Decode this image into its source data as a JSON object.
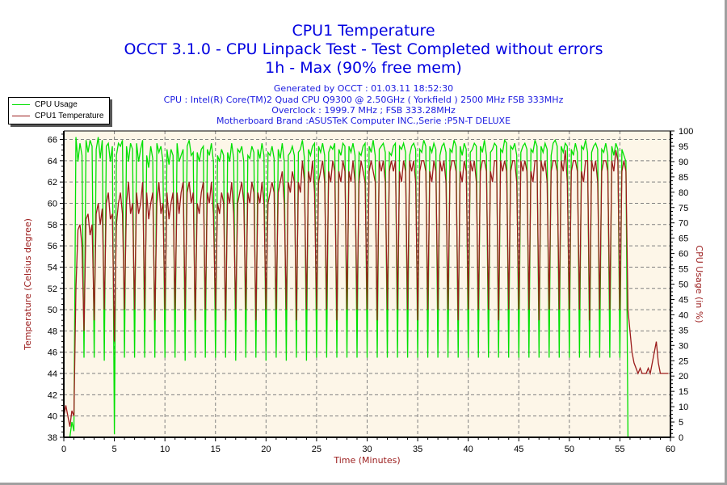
{
  "header": {
    "title_line1": "CPU1 Temperature",
    "title_line2": "OCCT 3.1.0 - CPU Linpack Test - Test Completed without errors",
    "title_line3": "1h - Max (90% free mem)",
    "generated": "Generated by OCCT : 01.03.11 18:52:30",
    "cpu": "CPU : Intel(R) Core(TM)2 Quad CPU Q9300 @ 2.50GHz ( Yorkfield ) 2500 MHz FSB 333MHz",
    "overclock": "Overclock : 1999.7 MHz ; FSB 333.28MHz",
    "motherboard": "Motherboard Brand :ASUSTeK Computer INC.,Serie :P5N-T DELUXE"
  },
  "legend": {
    "items": [
      {
        "label": "CPU Usage",
        "color": "#00e000"
      },
      {
        "label": "CPU1 Temperature",
        "color": "#9b1c1c"
      }
    ]
  },
  "colors": {
    "plot_bg": "#fdf6e8",
    "grid": "#808080",
    "usage": "#00e000",
    "temperature": "#9b1c1c",
    "title": "#0000e0",
    "axis_title": "#9b1c1c"
  },
  "chart_data": {
    "type": "line",
    "title": "CPU1 Temperature",
    "xlabel": "Time (Minutes)",
    "ylabel": "Temperature (Celsius degree)",
    "y2label": "CPU Usage (in %)",
    "xlim": [
      0,
      60
    ],
    "ylim": [
      38,
      66.8
    ],
    "y2lim": [
      0,
      100
    ],
    "grid": true,
    "legend_position": "top-left",
    "x_ticks": [
      "0",
      "5",
      "10",
      "15",
      "20",
      "25",
      "30",
      "35",
      "40",
      "45",
      "50",
      "55",
      "60"
    ],
    "y_ticks": [
      "38",
      "40",
      "42",
      "44",
      "46",
      "48",
      "50",
      "52",
      "54",
      "56",
      "58",
      "60",
      "62",
      "64",
      "66"
    ],
    "y2_ticks": [
      "0",
      "5",
      "10",
      "15",
      "20",
      "25",
      "30",
      "35",
      "40",
      "45",
      "50",
      "55",
      "60",
      "65",
      "70",
      "75",
      "80",
      "85",
      "90",
      "95",
      "100"
    ],
    "series": [
      {
        "name": "CPU Usage",
        "axis": "right",
        "x_step_minutes": 0.2,
        "values": [
          0,
          0,
          0,
          0,
          5,
          2,
          98,
          90,
          96,
          92,
          26,
          97,
          93,
          97,
          95,
          26,
          94,
          98,
          91,
          97,
          25,
          95,
          96,
          90,
          95,
          1,
          92,
          96,
          95,
          97,
          26,
          95,
          90,
          96,
          94,
          26,
          96,
          90,
          94,
          97,
          26,
          92,
          88,
          95,
          91,
          26,
          96,
          93,
          95,
          90,
          26,
          94,
          89,
          94,
          92,
          26,
          96,
          90,
          92,
          94,
          25,
          95,
          97,
          92,
          93,
          26,
          93,
          90,
          94,
          95,
          26,
          94,
          92,
          96,
          90,
          26,
          92,
          90,
          94,
          92,
          26,
          93,
          90,
          96,
          91,
          25,
          94,
          93,
          95,
          90,
          26,
          92,
          91,
          95,
          93,
          26,
          94,
          91,
          96,
          92,
          25,
          93,
          92,
          95,
          91,
          26,
          94,
          91,
          96,
          90,
          25,
          92,
          93,
          95,
          92,
          26,
          93,
          94,
          97,
          91,
          25,
          94,
          92,
          95,
          96,
          26,
          95,
          93,
          96,
          92,
          26,
          93,
          95,
          94,
          96,
          26,
          94,
          92,
          96,
          95,
          26,
          95,
          93,
          96,
          92,
          26,
          93,
          92,
          95,
          96,
          26,
          95,
          93,
          97,
          92,
          26,
          94,
          95,
          96,
          93,
          26,
          93,
          92,
          95,
          96,
          26,
          95,
          94,
          96,
          93,
          26,
          92,
          95,
          96,
          94,
          26,
          94,
          93,
          97,
          95,
          26,
          95,
          93,
          96,
          94,
          26,
          92,
          95,
          96,
          93,
          26,
          94,
          93,
          97,
          95,
          26,
          95,
          92,
          96,
          94,
          26,
          93,
          94,
          96,
          95,
          26,
          95,
          93,
          97,
          92,
          26,
          93,
          94,
          96,
          95,
          26,
          94,
          93,
          97,
          96,
          26,
          95,
          94,
          96,
          92,
          26,
          93,
          95,
          96,
          94,
          26,
          94,
          93,
          97,
          95,
          26,
          95,
          93,
          96,
          94,
          26,
          92,
          96,
          97,
          95,
          26,
          95,
          93,
          96,
          95,
          26,
          94,
          92,
          96,
          93,
          26,
          95,
          94,
          97,
          93,
          26,
          93,
          95,
          96,
          94,
          26,
          94,
          93,
          96,
          92,
          26,
          95,
          92,
          96,
          94,
          26,
          94,
          92,
          90,
          0,
          0,
          0,
          0,
          0,
          0,
          0,
          0,
          0,
          0,
          0,
          0,
          0,
          0,
          0,
          0,
          0,
          0,
          0,
          0,
          0,
          0,
          0
        ]
      },
      {
        "name": "CPU1 Temperature",
        "axis": "left",
        "x_step_minutes": 0.2,
        "values": [
          40,
          41,
          40,
          39,
          40.5,
          40,
          52,
          57.5,
          58,
          56,
          48,
          58.5,
          59,
          57,
          58,
          49,
          59,
          60,
          58,
          59.5,
          50,
          60,
          61,
          58.5,
          59,
          47,
          58,
          60,
          61,
          59,
          50,
          60,
          62,
          59,
          60,
          50,
          61,
          59,
          60,
          62,
          50,
          61,
          58.5,
          60,
          61,
          49,
          60,
          62,
          59,
          60,
          50,
          61,
          58.5,
          60,
          61,
          50,
          61,
          59,
          61,
          62,
          50,
          61,
          62,
          60,
          61,
          49,
          60,
          59,
          61,
          62,
          50,
          61,
          60,
          62,
          59,
          50,
          60,
          59,
          61,
          60,
          49,
          61,
          60,
          62,
          59,
          50,
          60,
          61,
          62,
          60,
          50,
          61,
          60,
          62,
          61,
          49,
          61,
          60,
          62,
          60,
          50,
          60,
          61,
          62,
          61,
          50,
          61,
          62,
          63,
          60,
          50,
          62,
          61,
          63,
          62,
          49,
          62,
          61,
          64,
          62,
          50,
          63,
          62,
          64,
          61,
          50,
          62,
          63,
          64,
          62,
          50,
          63,
          62,
          64,
          63,
          49,
          63,
          62,
          64,
          63,
          50,
          63,
          62,
          64,
          62,
          50,
          62,
          64,
          63,
          62,
          50,
          63,
          64,
          63,
          62,
          49,
          64,
          63,
          64,
          62,
          50,
          63,
          64,
          63,
          64,
          50,
          63,
          62,
          64,
          63,
          50,
          64,
          63,
          64,
          62,
          49,
          63,
          64,
          64,
          63,
          50,
          63,
          62,
          64,
          63,
          50,
          64,
          63,
          64,
          62,
          50,
          63,
          64,
          64,
          63,
          49,
          63,
          62,
          64,
          63,
          50,
          64,
          63,
          64,
          62,
          50,
          63,
          64,
          64,
          63,
          50,
          63,
          62,
          64,
          64,
          49,
          64,
          63,
          64,
          63,
          50,
          63,
          64,
          64,
          62,
          50,
          64,
          63,
          64,
          63,
          50,
          63,
          62,
          64,
          64,
          49,
          64,
          63,
          64,
          62,
          50,
          63,
          64,
          64,
          63,
          50,
          64,
          63,
          65,
          62,
          50,
          63,
          64,
          64,
          63,
          50,
          63,
          62,
          64,
          64,
          49,
          64,
          63,
          64,
          62,
          50,
          63,
          64,
          64,
          63,
          50,
          64,
          63,
          65,
          64,
          50,
          63,
          64,
          63,
          50,
          48,
          46,
          45,
          44.5,
          44,
          44.5,
          44,
          44,
          44,
          44.5,
          44,
          45,
          46,
          47,
          45,
          44,
          44,
          44,
          44,
          44,
          43.5,
          43,
          42.5
        ]
      }
    ]
  }
}
